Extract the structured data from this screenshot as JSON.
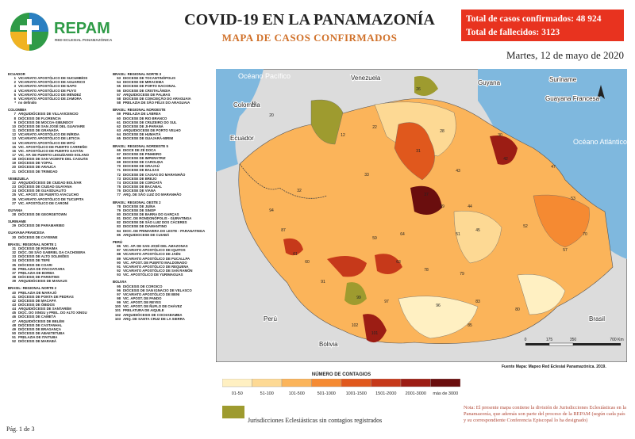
{
  "header": {
    "logo": "REPAM",
    "logo_subtitle": "RED ECLESIAL PANAMAZÓNICA",
    "title": "COVID-19 EN LA PANAMAZONÍA",
    "subtitle": "MAPA DE CASOS CONFIRMADOS",
    "totals": [
      "Total de casos confirmados: 48 924",
      "Total de fallecidos: 3123"
    ],
    "date": "Martes, 12 de mayo de 2020"
  },
  "lists": [
    [
      {
        "title": "ECUADOR",
        "items": [
          {
            "num": 1,
            "name": "VICARIATO APOSTÓLICO DE SUCUMBÍOS"
          },
          {
            "num": 2,
            "name": "VICARIATO APOSTÓLICO DE AGUARICO"
          },
          {
            "num": 3,
            "name": "VICARIATO APOSTÓLICO DE NAPO"
          },
          {
            "num": 4,
            "name": "VICARIATO APOSTÓLICO DE PUYO"
          },
          {
            "num": 5,
            "name": "VICARIATO APOSTÓLICO DE MÉNDEZ"
          },
          {
            "num": 6,
            "name": "VICARIATO APOSTÓLICO DE ZAMORA"
          },
          {
            "num": "*",
            "name": "no definido"
          }
        ]
      },
      {
        "title": "COLOMBIA",
        "items": [
          {
            "num": 7,
            "name": "ARQUIDIÓCESIS DE VILLAVICENCIO"
          },
          {
            "num": 8,
            "name": "DIÓCESIS DE FLORENCIA"
          },
          {
            "num": 9,
            "name": "DIÓCESIS DE MOCOA-SIBUNDOY"
          },
          {
            "num": 10,
            "name": "DIÓCESIS DE SAN JOSÉ DEL GUAVIARE"
          },
          {
            "num": 11,
            "name": "DIÓCESIS DE GRANADA"
          },
          {
            "num": 12,
            "name": "VICARIATO APOSTÓLICO DE INÍRIDA"
          },
          {
            "num": 13,
            "name": "VICARIATO APOSTÓLICO DE LETICIA"
          },
          {
            "num": 14,
            "name": "VICARIATO APOSTÓLICO DE MITÚ"
          },
          {
            "num": 15,
            "name": "VIC. APOSTÓLICO DE PUERTO CARREÑO"
          },
          {
            "num": 16,
            "name": "VIC. APOSTÓLICO DE PUERTO GAITÁN"
          },
          {
            "num": 17,
            "name": "VIC. AP. DE PUERTO LEGUÍZAMO-SOLANO"
          },
          {
            "num": 18,
            "name": "DIÓCESIS DE SAN VICENTE DEL CAGUÁN"
          },
          {
            "num": 19,
            "name": "DIÓCESIS DE YOPAL"
          },
          {
            "num": 20,
            "name": "DIÓCESIS DE ARAUCA"
          },
          {
            "num": 21,
            "name": "DIÓCESIS DE TRINIDAD"
          }
        ]
      },
      {
        "title": "VENEZUELA",
        "items": [
          {
            "num": 22,
            "name": "ARQUIDIÓCESIS DE CIUDAD BOLÍVAR"
          },
          {
            "num": 23,
            "name": "DIÓCESIS DE CIUDAD GUAYANA"
          },
          {
            "num": 24,
            "name": "DIÓCESIS DE GUASDUALITO"
          },
          {
            "num": 25,
            "name": "VIC. APOST. DE PUERTO AYACUCHO"
          },
          {
            "num": 26,
            "name": "VICARIATO APOSTÓLICO DE TUCUPITA"
          },
          {
            "num": 27,
            "name": "VIC. APOSTÓLICO DE CARONÍ"
          }
        ]
      },
      {
        "title": "GUYANA",
        "items": [
          {
            "num": 28,
            "name": "DIÓCESIS DE GEORGETOWN"
          }
        ]
      },
      {
        "title": "SURINAME",
        "items": [
          {
            "num": 29,
            "name": "DIÓCESIS DE PARAMARIBO"
          }
        ]
      },
      {
        "title": "GUAYANA FRANCESA",
        "items": [
          {
            "num": 30,
            "name": "DIÓCESIS DE CAYENNE"
          }
        ]
      },
      {
        "title": "BRASIL: REGIONAL NORTE 1",
        "items": [
          {
            "num": 31,
            "name": "DIÓCESIS DE RORAIMA"
          },
          {
            "num": 32,
            "name": "DIÓC. DE SÃO GABRIEL DA CACHOEIRA"
          },
          {
            "num": 33,
            "name": "DIÓCESIS DE ALTO SOLIMÕES"
          },
          {
            "num": 34,
            "name": "DIÓCESIS DE TEFÉ"
          },
          {
            "num": 35,
            "name": "DIÓCESIS DE COARI"
          },
          {
            "num": 36,
            "name": "PRELAZIA DE ITACOATIARA"
          },
          {
            "num": 37,
            "name": "PRELAZIA DE BORBA"
          },
          {
            "num": 38,
            "name": "DIÓCESIS DE PARINTINS"
          },
          {
            "num": 39,
            "name": "ARQUIDIÓCESIS DE MANAUS"
          }
        ]
      },
      {
        "title": "BRASIL: REGIONAL NORTE 2",
        "items": [
          {
            "num": 40,
            "name": "PRELAZIA DE MARAJÓ"
          },
          {
            "num": 41,
            "name": "DIÓCESIS DE PONTA DE PEDRAS"
          },
          {
            "num": 42,
            "name": "DIÓCESIS DE MACAPÁ"
          },
          {
            "num": 43,
            "name": "DIÓCESIS DE ÓBIDOS"
          },
          {
            "num": 44,
            "name": "ARQUIDIÓCESIS DE SANTARÉM"
          },
          {
            "num": 45,
            "name": "DIOC. DO XINGU y PREL. DO ALTO XINGU"
          },
          {
            "num": 46,
            "name": "DIÓCESIS DE CAMETÁ"
          },
          {
            "num": 47,
            "name": "ARQUIDIÓCESIS DE BELÉM"
          },
          {
            "num": 48,
            "name": "DIÓCESIS DE CASTANHAL"
          },
          {
            "num": 49,
            "name": "DIÓCESIS DE BRAGANÇA"
          },
          {
            "num": 50,
            "name": "DIÓCESIS DE ABAETETUBA"
          },
          {
            "num": 51,
            "name": "PRELAZIA DE ITAITUBA"
          },
          {
            "num": 52,
            "name": "DIÓCESIS DE MARABÁ"
          }
        ]
      }
    ],
    [
      {
        "title": "BRASIL: REGIONAL NORTE 3",
        "items": [
          {
            "num": 53,
            "name": "DIOCESE DE TOCANTINÓPOLIS"
          },
          {
            "num": 54,
            "name": "DIOCESE DE MIRACEMA"
          },
          {
            "num": 55,
            "name": "DIOCESE DE PORTO NACIONAL"
          },
          {
            "num": 56,
            "name": "DIOCESE DE CRISTALÂNDIA"
          },
          {
            "num": 57,
            "name": "ARQUIDIOCESE DE PALMAS"
          },
          {
            "num": 58,
            "name": "DIOCESE DE CONCEIÇÃO DO ARAGUAIA"
          },
          {
            "num": 58,
            "name": "PRELAZIA DE SÃO FÉLIX DO ARAGUAIA"
          }
        ]
      },
      {
        "title": "BRASIL: REGIONAL NOROESTE",
        "items": [
          {
            "num": 59,
            "name": "PRELAZIA DE LÁBREA"
          },
          {
            "num": 60,
            "name": "DIOCESE DE RIO BRANCO"
          },
          {
            "num": 61,
            "name": "DIOCESE DE CRUZEIRO DO SUL"
          },
          {
            "num": 62,
            "name": "DIOCESE DE JI-PARANÁ"
          },
          {
            "num": 63,
            "name": "ARQUIDIOCESE DE PORTO VELHO"
          },
          {
            "num": 64,
            "name": "DIOCESE DE HUMAITÁ"
          },
          {
            "num": 65,
            "name": "DIOCESE DE GUAJARÁ-MIRIM"
          }
        ]
      },
      {
        "title": "BRASIL: REGIONAL NORDESTE 5",
        "items": [
          {
            "num": 66,
            "name": "DIOCE DE ZÉ DOCA"
          },
          {
            "num": 67,
            "name": "DIOCESE DE PINHEIRO"
          },
          {
            "num": 68,
            "name": "DIOCESE DE IMPERATRIZ"
          },
          {
            "num": 69,
            "name": "DIOCESE DE CAROLINA"
          },
          {
            "num": 70,
            "name": "DIOCESE DE GRAJAÚ"
          },
          {
            "num": 71,
            "name": "DIOCESE DE BALSAS"
          },
          {
            "num": 72,
            "name": "DIOCESE DE CAXIAS DO MARANHÃO"
          },
          {
            "num": 73,
            "name": "DIOCESE DE BREJO"
          },
          {
            "num": 74,
            "name": "DIOCESE DE COROATÁ"
          },
          {
            "num": 75,
            "name": "DIOCESE DE BACABAL"
          },
          {
            "num": 76,
            "name": "DIOCESE DE VIANA"
          },
          {
            "num": 77,
            "name": "ARQ. DE SÃO LUIZ DO MARANHÃO"
          }
        ]
      },
      {
        "title": "BRASIL: REGIONAL OESTE 2",
        "items": [
          {
            "num": 78,
            "name": "DIOCESE DE JUÍNA"
          },
          {
            "num": 79,
            "name": "DIOCESE DE SINOP"
          },
          {
            "num": 80,
            "name": "DIOCESE DE BARRA DO GARÇAS"
          },
          {
            "num": 81,
            "name": "DIOC. DE RONDONÓPOLIS - GUIRATINGA"
          },
          {
            "num": 82,
            "name": "DIOCESE DE SÃO LUIZ DOS CÁCERES"
          },
          {
            "num": 83,
            "name": "DIOCESE DE DIAMANTINO"
          },
          {
            "num": 84,
            "name": "DIOC. DE PRIMAVERA DO LESTE - PARANATINGA"
          },
          {
            "num": 85,
            "name": "ARQUIDIOCESE DE CUIABÁ"
          }
        ]
      },
      {
        "title": "PERÚ",
        "items": [
          {
            "num": 86,
            "name": "VIC. AP. DE SAN JOSÉ DEL AMAZONAS"
          },
          {
            "num": 87,
            "name": "VICARIATO APOSTÓLICO DE IQUITOS"
          },
          {
            "num": 88,
            "name": "VICARIATO APOSTÓLICO DE JAÉN"
          },
          {
            "num": 89,
            "name": "VICARIATO APOSTÓLICO DE PUCALLPA"
          },
          {
            "num": 90,
            "name": "VIC. APOST. DE PUERTO MALDONADO"
          },
          {
            "num": 91,
            "name": "VICARIATO APOSTÓLICO DE REQUENA"
          },
          {
            "num": 92,
            "name": "VICARIATO APOSTÓLICO DE SAN RAMÓN"
          },
          {
            "num": 93,
            "name": "VIC. APOSTÓLICO DE YURIMAGUAS"
          }
        ]
      },
      {
        "title": "BOLIVIA",
        "items": [
          {
            "num": 95,
            "name": "DIÓCESIS DE COROICO"
          },
          {
            "num": 96,
            "name": "DIÓCESIS DE SAN IGNACIO DE VELASCO"
          },
          {
            "num": 97,
            "name": "VICARIATO APOSTÓLICO DE BENI"
          },
          {
            "num": 98,
            "name": "VIC. APOST. DE PANDO"
          },
          {
            "num": 99,
            "name": "VIC. APOST. DE REYES"
          },
          {
            "num": 100,
            "name": "VIC. APOST. DE ÑUFLO DE CHÁVEZ"
          },
          {
            "num": 101,
            "name": "PRELATURA DE AIQUILE"
          },
          {
            "num": 102,
            "name": "ARQUIDIÓCESIS DE COCHABAMBA"
          },
          {
            "num": 103,
            "name": "ARQ. DE SANTA CRUZ DE LA SIERRA"
          }
        ]
      }
    ]
  ],
  "map": {
    "places": [
      "Océano Pacífico",
      "Colombia",
      "Ecuador",
      "Venezuela",
      "Guyana",
      "Suriname",
      "Guayana Francesa",
      "Océano Atlántico",
      "Perú",
      "Bolivia",
      "Brasil"
    ],
    "numbers": [
      19,
      20,
      12,
      22,
      26,
      28,
      30,
      42,
      31,
      33,
      32,
      37,
      39,
      43,
      44,
      51,
      45,
      52,
      59,
      64,
      60,
      61,
      63,
      78,
      79,
      91,
      87,
      94,
      99,
      97,
      96,
      101,
      102,
      83,
      80,
      85,
      57,
      53,
      70,
      47
    ],
    "scale": [
      0,
      175,
      350,
      "700 Km"
    ],
    "source": "Fuente Mapa: Mapeo Red Eclesial Panamazónica. 2019."
  },
  "legend": {
    "title": "NÚMERO DE CONTAGIOS",
    "classes": [
      {
        "label": "01-50",
        "color": "#fff0c2"
      },
      {
        "label": "51-100",
        "color": "#fdd994"
      },
      {
        "label": "101-500",
        "color": "#fbb45a"
      },
      {
        "label": "501-1000",
        "color": "#f58a32"
      },
      {
        "label": "1001-1500",
        "color": "#e0581d"
      },
      {
        "label": "1501-2000",
        "color": "#c6391a"
      },
      {
        "label": "2001-3000",
        "color": "#9c1d14"
      },
      {
        "label": "más de 3000",
        "color": "#6a0e0e"
      }
    ],
    "none_label": "Jurisdicciones Eclesiásticas sin contagios registrados",
    "none_color": "#9e9b2f"
  },
  "note": "Nota: El presente mapa contiene la división de Jurisdicciones Eclesiásticas en la Panamazonía, que además son parte del proceso de la REPAM (según cada país y su correspondiente Conferencia Episcopal lo ha designado)",
  "page": "Pág. 1 de 3"
}
